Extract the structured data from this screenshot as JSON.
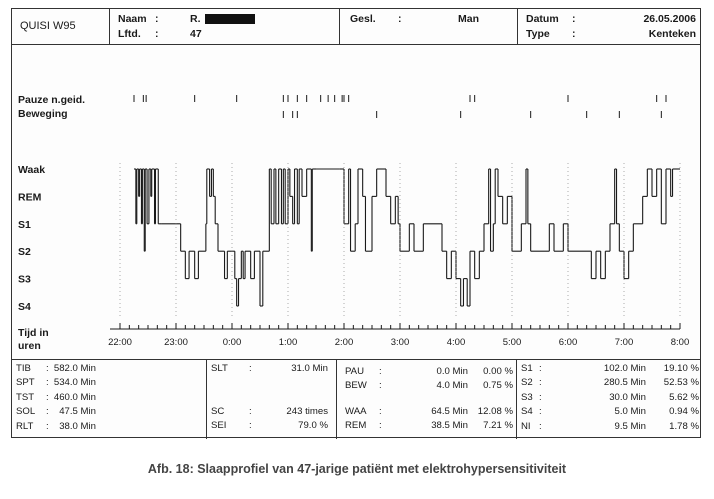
{
  "header": {
    "device": "QUISI W95",
    "name_label": "Naam",
    "name_value": "R.",
    "age_label": "Lftd.",
    "age_value": "47",
    "sex_label": "Gesl.",
    "sex_value": "Man",
    "date_label": "Datum",
    "date_value": "26.05.2006",
    "type_label": "Type",
    "type_value": "Kenteken",
    "colon": ":"
  },
  "event_rows": {
    "pause_label": "Pauze n.geid.",
    "movement_label": "Beweging"
  },
  "chart_data": {
    "type": "line",
    "title": "",
    "xlabel": "Tijd in uren",
    "x_ticks": [
      "22:00",
      "23:00",
      "0:00",
      "1:00",
      "2:00",
      "3:00",
      "4:00",
      "5:00",
      "6:00",
      "7:00",
      "8:00"
    ],
    "x_range": [
      "22:00",
      "8:00"
    ],
    "y_categories": [
      "Waak",
      "REM",
      "S1",
      "S2",
      "S3",
      "S4"
    ],
    "step": "post",
    "series": [
      {
        "hypnogram": [
          [
            "22:15",
            "Waak"
          ],
          [
            "22:17",
            "S1"
          ],
          [
            "22:18",
            "Waak"
          ],
          [
            "22:20",
            "REM"
          ],
          [
            "22:21",
            "Waak"
          ],
          [
            "22:23",
            "S1"
          ],
          [
            "22:24",
            "Waak"
          ],
          [
            "22:26",
            "S2"
          ],
          [
            "22:27",
            "Waak"
          ],
          [
            "22:29",
            "S1"
          ],
          [
            "22:31",
            "Waak"
          ],
          [
            "22:33",
            "REM"
          ],
          [
            "22:34",
            "Waak"
          ],
          [
            "22:37",
            "S1"
          ],
          [
            "22:38",
            "Waak"
          ],
          [
            "22:41",
            "S1"
          ],
          [
            "22:44",
            "S1"
          ],
          [
            "23:00",
            "S1"
          ],
          [
            "23:05",
            "S2"
          ],
          [
            "23:10",
            "S3"
          ],
          [
            "23:14",
            "S2"
          ],
          [
            "23:20",
            "S3"
          ],
          [
            "23:24",
            "S2"
          ],
          [
            "23:32",
            "S1"
          ],
          [
            "23:33",
            "Waak"
          ],
          [
            "23:36",
            "REM"
          ],
          [
            "23:38",
            "Waak"
          ],
          [
            "23:40",
            "REM"
          ],
          [
            "23:42",
            "S1"
          ],
          [
            "23:45",
            "S2"
          ],
          [
            "23:52",
            "S3"
          ],
          [
            "23:55",
            "S2"
          ],
          [
            "0:03",
            "S3"
          ],
          [
            "0:05",
            "S4"
          ],
          [
            "0:07",
            "S3"
          ],
          [
            "0:10",
            "S2"
          ],
          [
            "0:12",
            "S3"
          ],
          [
            "0:14",
            "S2"
          ],
          [
            "0:20",
            "S3"
          ],
          [
            "0:24",
            "S2"
          ],
          [
            "0:30",
            "S4"
          ],
          [
            "0:33",
            "S2"
          ],
          [
            "0:40",
            "Waak"
          ],
          [
            "0:42",
            "S1"
          ],
          [
            "0:45",
            "Waak"
          ],
          [
            "0:47",
            "S1"
          ],
          [
            "0:50",
            "Waak"
          ],
          [
            "0:53",
            "S1"
          ],
          [
            "0:55",
            "Waak"
          ],
          [
            "0:57",
            "S1"
          ],
          [
            "1:00",
            "Waak"
          ],
          [
            "1:02",
            "REM"
          ],
          [
            "1:05",
            "S1"
          ],
          [
            "1:07",
            "Waak"
          ],
          [
            "1:10",
            "S1"
          ],
          [
            "1:12",
            "Waak"
          ],
          [
            "1:15",
            "REM"
          ],
          [
            "1:20",
            "Waak"
          ],
          [
            "1:25",
            "S2"
          ],
          [
            "1:26",
            "Waak"
          ],
          [
            "1:30",
            "Waak"
          ],
          [
            "1:55",
            "Waak"
          ],
          [
            "2:00",
            "S1"
          ],
          [
            "2:03",
            "S1"
          ],
          [
            "2:05",
            "Waak"
          ],
          [
            "2:07",
            "S2"
          ],
          [
            "2:12",
            "S1"
          ],
          [
            "2:15",
            "Waak"
          ],
          [
            "2:20",
            "REM"
          ],
          [
            "2:23",
            "S2"
          ],
          [
            "2:30",
            "REM"
          ],
          [
            "2:35",
            "Waak"
          ],
          [
            "2:45",
            "REM"
          ],
          [
            "2:50",
            "S1"
          ],
          [
            "2:55",
            "REM"
          ],
          [
            "2:58",
            "S1"
          ],
          [
            "3:00",
            "S2"
          ],
          [
            "3:10",
            "S1"
          ],
          [
            "3:15",
            "S2"
          ],
          [
            "3:25",
            "S1"
          ],
          [
            "3:45",
            "S2"
          ],
          [
            "3:50",
            "S3"
          ],
          [
            "3:55",
            "S2"
          ],
          [
            "4:00",
            "S3"
          ],
          [
            "4:05",
            "S4"
          ],
          [
            "4:08",
            "S3"
          ],
          [
            "4:12",
            "S4"
          ],
          [
            "4:15",
            "S2"
          ],
          [
            "4:20",
            "S3"
          ],
          [
            "4:25",
            "S2"
          ],
          [
            "4:30",
            "S1"
          ],
          [
            "4:35",
            "Waak"
          ],
          [
            "4:37",
            "S2"
          ],
          [
            "4:40",
            "S1"
          ],
          [
            "4:42",
            "Waak"
          ],
          [
            "4:45",
            "REM"
          ],
          [
            "4:50",
            "S1"
          ],
          [
            "4:55",
            "REM"
          ],
          [
            "5:00",
            "S2"
          ],
          [
            "5:10",
            "S1"
          ],
          [
            "5:15",
            "Waak"
          ],
          [
            "5:17",
            "S1"
          ],
          [
            "5:20",
            "S2"
          ],
          [
            "5:40",
            "S1"
          ],
          [
            "5:45",
            "S2"
          ],
          [
            "5:55",
            "S1"
          ],
          [
            "6:00",
            "S2"
          ],
          [
            "6:25",
            "S3"
          ],
          [
            "6:30",
            "S2"
          ],
          [
            "6:35",
            "S3"
          ],
          [
            "6:40",
            "S2"
          ],
          [
            "6:45",
            "S1"
          ],
          [
            "6:50",
            "Waak"
          ],
          [
            "6:52",
            "S1"
          ],
          [
            "6:55",
            "S2"
          ],
          [
            "7:00",
            "S3"
          ],
          [
            "7:05",
            "S2"
          ],
          [
            "7:10",
            "S1"
          ],
          [
            "7:20",
            "REM"
          ],
          [
            "7:25",
            "Waak"
          ],
          [
            "7:30",
            "REM"
          ],
          [
            "7:35",
            "Waak"
          ],
          [
            "7:40",
            "S1"
          ],
          [
            "7:45",
            "Waak"
          ],
          [
            "7:50",
            "REM"
          ],
          [
            "7:52",
            "Waak"
          ],
          [
            "8:00",
            "Waak"
          ]
        ]
      }
    ],
    "pause_events": [
      "22:15",
      "22:25",
      "22:28",
      "23:20",
      "0:05",
      "0:55",
      "1:00",
      "1:10",
      "1:20",
      "1:35",
      "1:43",
      "1:50",
      "1:58",
      "2:00",
      "2:05",
      "4:15",
      "4:20",
      "6:00",
      "7:35",
      "7:45"
    ],
    "movement_events": [
      "0:55",
      "1:05",
      "1:10",
      "2:35",
      "4:05",
      "5:20",
      "6:20",
      "6:55",
      "7:40"
    ]
  },
  "stats": {
    "col1": [
      {
        "label": "TIB",
        "value": "582.0 Min"
      },
      {
        "label": "SPT",
        "value": "534.0 Min"
      },
      {
        "label": "TST",
        "value": "460.0 Min"
      },
      {
        "label": "SOL",
        "value": "47.5 Min"
      },
      {
        "label": "RLT",
        "value": "38.0 Min"
      }
    ],
    "col2": [
      {
        "label": "SLT",
        "value": "31.0 Min"
      },
      {
        "label": "SC",
        "value": "243 times"
      },
      {
        "label": "SEI",
        "value": "79.0 %"
      }
    ],
    "col3": [
      {
        "label": "PAU",
        "value": "0.0 Min",
        "pct": "0.00 %"
      },
      {
        "label": "BEW",
        "value": "4.0 Min",
        "pct": "0.75 %"
      },
      {
        "label": "WAA",
        "value": "64.5 Min",
        "pct": "12.08 %"
      },
      {
        "label": "REM",
        "value": "38.5 Min",
        "pct": "7.21 %"
      }
    ],
    "col4": [
      {
        "label": "S1",
        "value": "102.0 Min",
        "pct": "19.10 %"
      },
      {
        "label": "S2",
        "value": "280.5 Min",
        "pct": "52.53 %"
      },
      {
        "label": "S3",
        "value": "30.0 Min",
        "pct": "5.62 %"
      },
      {
        "label": "S4",
        "value": "5.0 Min",
        "pct": "0.94 %"
      },
      {
        "label": "NI",
        "value": "9.5 Min",
        "pct": "1.78 %"
      }
    ]
  },
  "caption": "Afb. 18:  Slaapprofiel van 47-jarige patiënt met elektrohypersensitiviteit",
  "colors": {
    "ink": "#1a1a1a",
    "frame": "#333333",
    "caption": "#444444"
  }
}
